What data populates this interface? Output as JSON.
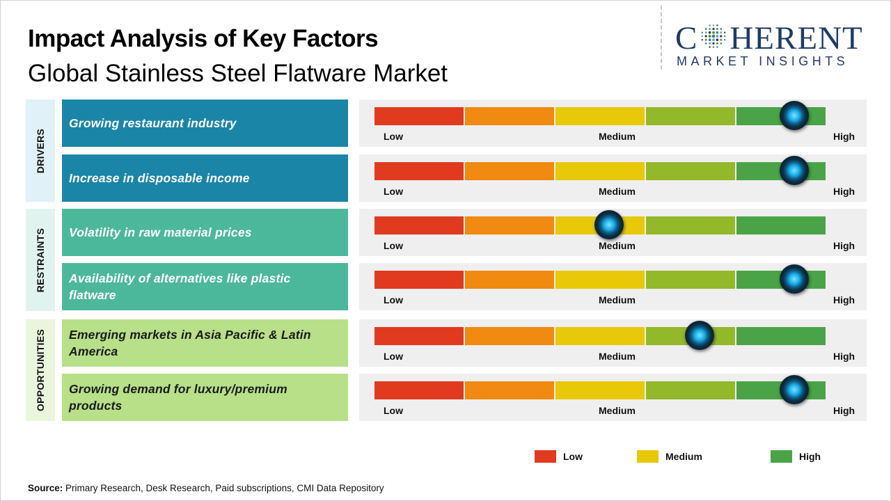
{
  "title": "Impact Analysis of Key Factors",
  "subtitle": "Global Stainless Steel Flatware Market",
  "logo": {
    "top_left": "C",
    "top_right": "HERENT",
    "bottom": "MARKET INSIGHTS",
    "color": "#1f3b63"
  },
  "colors": {
    "low": "#e03a1f",
    "low_medium": "#f08a10",
    "medium": "#e8c90a",
    "medium_high": "#93b82a",
    "high": "#4aa447",
    "drivers": "#1b85a8",
    "restraints": "#4cb89b",
    "opportunities": "#b7e089"
  },
  "scale_labels": {
    "low": "Low",
    "medium": "Medium",
    "high": "High"
  },
  "categories": [
    {
      "label": "DRIVERS"
    },
    {
      "label": "RESTRAINTS"
    },
    {
      "label": "OPPORTUNITIES"
    }
  ],
  "legend": [
    {
      "label": "Low",
      "color": "#e03a1f"
    },
    {
      "label": "Medium",
      "color": "#e8c90a"
    },
    {
      "label": "High",
      "color": "#4aa447"
    }
  ],
  "source": {
    "label": "Source:",
    "text": " Primary Research, Desk Research, Paid subscriptions, CMI Data Repository"
  },
  "chart_data": {
    "type": "bar",
    "scale": [
      "Low",
      "Medium",
      "High"
    ],
    "value_range": [
      0,
      1
    ],
    "series": [
      {
        "category": "DRIVERS",
        "factor": "Growing restaurant industry",
        "impact": 0.93
      },
      {
        "category": "DRIVERS",
        "factor": "Increase in disposable income",
        "impact": 0.93
      },
      {
        "category": "RESTRAINTS",
        "factor": "Volatility in raw material prices",
        "impact": 0.52
      },
      {
        "category": "RESTRAINTS",
        "factor": "Availability of alternatives like plastic flatware",
        "impact": 0.93
      },
      {
        "category": "OPPORTUNITIES",
        "factor": "Emerging markets in Asia Pacific & Latin America",
        "impact": 0.72
      },
      {
        "category": "OPPORTUNITIES",
        "factor": "Growing demand for luxury/premium products",
        "impact": 0.93
      }
    ]
  }
}
